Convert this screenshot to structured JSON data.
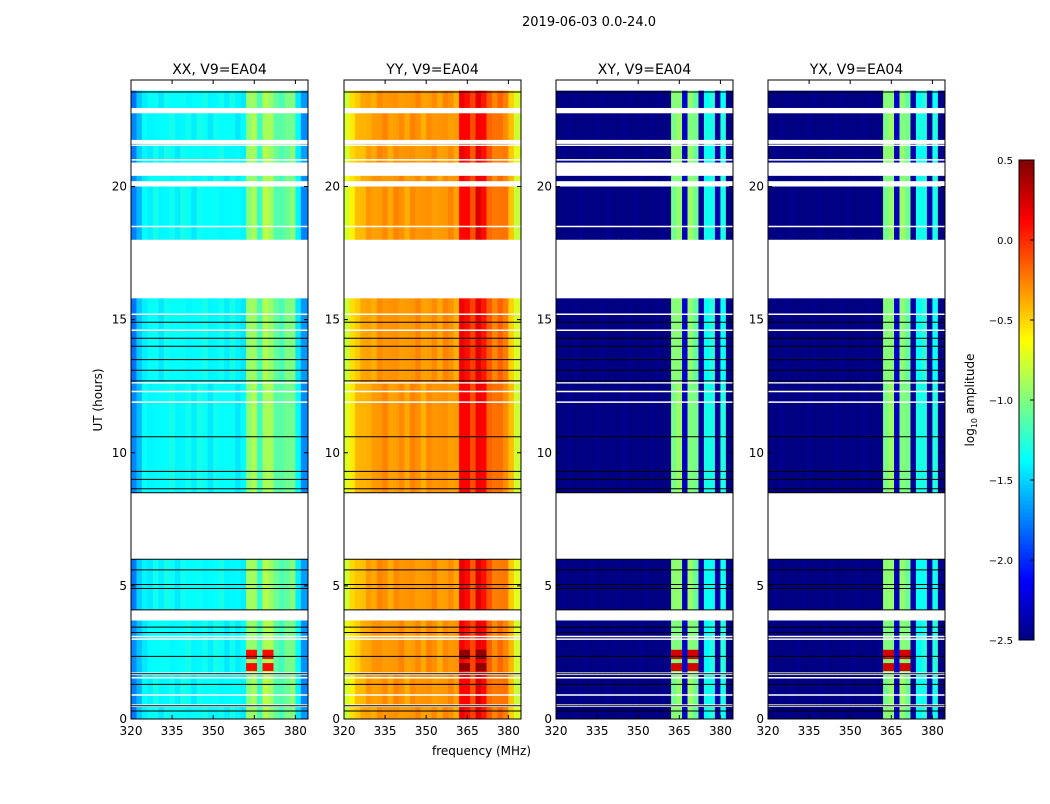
{
  "chart_data": {
    "type": "heatmap",
    "suptitle": "2019-06-03 0.0-24.0",
    "xlabel": "frequency (MHz)",
    "ylabel": "UT (hours)",
    "xlim": [
      320,
      384.6
    ],
    "ylim": [
      0,
      24
    ],
    "xticks": [
      "320",
      "335",
      "350",
      "365",
      "380"
    ],
    "yticks": [
      "0",
      "5",
      "10",
      "15",
      "20"
    ],
    "channels_mhz": [
      320,
      322,
      324,
      326,
      328,
      330,
      332,
      334,
      336,
      338,
      340,
      342,
      344,
      346,
      348,
      350,
      352,
      354,
      356,
      358,
      360,
      362,
      364,
      366,
      368,
      370,
      372,
      374,
      376,
      378,
      380,
      382
    ],
    "time_segments_hours": [
      [
        0.0,
        0.45
      ],
      [
        0.55,
        1.65
      ],
      [
        1.75,
        3.7
      ],
      [
        4.1,
        6.0
      ],
      [
        8.5,
        12.6
      ],
      [
        12.65,
        15.8
      ],
      [
        18.0,
        20.0
      ],
      [
        20.2,
        20.4
      ],
      [
        20.9,
        21.6
      ],
      [
        21.75,
        22.75
      ],
      [
        22.95,
        23.6
      ]
    ],
    "flag_lines_hours": [
      0.3,
      0.5,
      1.3,
      1.7,
      2.35,
      3.25,
      3.45,
      4.1,
      4.9,
      5.05,
      5.6,
      6.0,
      8.5,
      8.65,
      9.0,
      9.3,
      10.6,
      12.7,
      13.1,
      13.5,
      14.0,
      14.3,
      14.9,
      23.55
    ],
    "white_gap_lines_hours": [
      0.9,
      1.55,
      3.0,
      3.1,
      11.9,
      12.3,
      14.6,
      15.2,
      18.5,
      21.0,
      21.55
    ],
    "panels": [
      {
        "title": "XX, V9=EA04",
        "profile": [
          -1.75,
          -1.55,
          -1.4,
          -1.4,
          -1.35,
          -1.4,
          -1.35,
          -1.35,
          -1.4,
          -1.35,
          -1.35,
          -1.4,
          -1.35,
          -1.35,
          -1.4,
          -1.35,
          -1.35,
          -1.4,
          -1.35,
          -1.4,
          -1.4,
          -0.95,
          -0.9,
          -1.2,
          -0.85,
          -0.9,
          -1.1,
          -1.15,
          -1.05,
          -1.0,
          -1.4,
          -1.7
        ],
        "event": {
          "hours": [
            1.8,
            2.6
          ],
          "channels": [
            21,
            22,
            24,
            25
          ],
          "value": 0.1
        }
      },
      {
        "title": "YY, V9=EA04",
        "profile": [
          -0.75,
          -0.55,
          -0.45,
          -0.4,
          -0.35,
          -0.35,
          -0.3,
          -0.3,
          -0.35,
          -0.3,
          -0.3,
          -0.35,
          -0.3,
          -0.3,
          -0.35,
          -0.3,
          -0.3,
          -0.35,
          -0.3,
          -0.3,
          -0.35,
          0.15,
          0.1,
          -0.1,
          0.2,
          0.1,
          -0.15,
          -0.25,
          -0.2,
          -0.25,
          -0.45,
          -0.75
        ],
        "event": {
          "hours": [
            1.8,
            2.6
          ],
          "channels": [
            21,
            22,
            24,
            25
          ],
          "value": 0.45
        }
      },
      {
        "title": "XY, V9=EA04",
        "profile": [
          -2.5,
          -2.5,
          -2.5,
          -2.5,
          -2.5,
          -2.5,
          -2.5,
          -2.5,
          -2.5,
          -2.5,
          -2.5,
          -2.5,
          -2.5,
          -2.5,
          -2.5,
          -2.5,
          -2.5,
          -2.5,
          -2.5,
          -2.5,
          -2.5,
          -1.0,
          -0.95,
          -2.3,
          -0.95,
          -1.05,
          -2.4,
          -1.35,
          -1.3,
          -2.4,
          -1.3,
          -2.5
        ],
        "event": {
          "hours": [
            1.8,
            2.6
          ],
          "channels": [
            21,
            22,
            24,
            25
          ],
          "value": 0.25
        }
      },
      {
        "title": "YX, V9=EA04",
        "profile": [
          -2.5,
          -2.5,
          -2.5,
          -2.5,
          -2.5,
          -2.5,
          -2.5,
          -2.5,
          -2.5,
          -2.5,
          -2.5,
          -2.5,
          -2.5,
          -2.5,
          -2.5,
          -2.5,
          -2.5,
          -2.5,
          -2.5,
          -2.5,
          -2.5,
          -1.0,
          -0.95,
          -2.3,
          -0.95,
          -1.05,
          -2.4,
          -1.35,
          -1.3,
          -2.4,
          -1.3,
          -2.5
        ],
        "event": {
          "hours": [
            1.8,
            2.6
          ],
          "channels": [
            21,
            22,
            24,
            25
          ],
          "value": 0.25
        }
      }
    ],
    "colorbar": {
      "label": "log10 amplitude",
      "label_main": "log",
      "label_sub": "10",
      "label_rest": " amplitude",
      "range": [
        -2.5,
        0.5
      ],
      "ticks": [
        "0.5",
        "0.0",
        "−0.5",
        "−1.0",
        "−1.5",
        "−2.0",
        "−2.5"
      ],
      "colormap": "jet"
    }
  }
}
